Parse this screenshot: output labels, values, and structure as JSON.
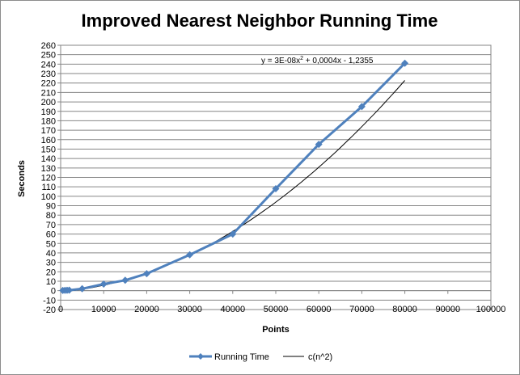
{
  "chart_data": {
    "type": "scatter",
    "title": "Improved Nearest Neighbor Running Time",
    "xlabel": "Points",
    "ylabel": "Seconds",
    "xlim": [
      0,
      100000
    ],
    "ylim": [
      -20,
      260
    ],
    "xticks": [
      0,
      10000,
      20000,
      30000,
      40000,
      50000,
      60000,
      70000,
      80000,
      90000,
      100000
    ],
    "yticks": [
      -20,
      -10,
      0,
      10,
      20,
      30,
      40,
      50,
      60,
      70,
      80,
      90,
      100,
      110,
      120,
      130,
      140,
      150,
      160,
      170,
      180,
      190,
      200,
      210,
      220,
      230,
      240,
      250,
      260
    ],
    "grid": "horizontal",
    "legend_position": "bottom",
    "series": [
      {
        "name": "Running Time",
        "color": "#4f81bd",
        "marker": "diamond",
        "points": [
          {
            "x": 500,
            "y": 0.2
          },
          {
            "x": 1000,
            "y": 0.3
          },
          {
            "x": 1500,
            "y": 0.4
          },
          {
            "x": 2000,
            "y": 0.5
          },
          {
            "x": 5000,
            "y": 2
          },
          {
            "x": 10000,
            "y": 7
          },
          {
            "x": 15000,
            "y": 11
          },
          {
            "x": 20000,
            "y": 18
          },
          {
            "x": 30000,
            "y": 38
          },
          {
            "x": 40000,
            "y": 60
          },
          {
            "x": 50000,
            "y": 108
          },
          {
            "x": 60000,
            "y": 155
          },
          {
            "x": 70000,
            "y": 195
          },
          {
            "x": 80000,
            "y": 241
          }
        ]
      },
      {
        "name": "c(n^2)",
        "color": "#000000",
        "trendline": true,
        "equation_text": "y = 3E-08x² + 0,0004x - 1,2355",
        "coefficients": {
          "a": 3e-08,
          "b": 0.0004,
          "c": -1.2355
        },
        "x_range": [
          0,
          80000
        ]
      }
    ]
  }
}
